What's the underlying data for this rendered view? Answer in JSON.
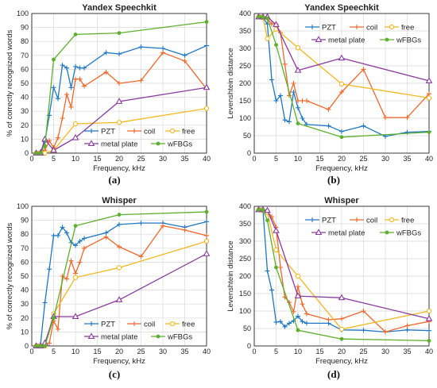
{
  "chart_data": [
    {
      "type": "line",
      "panel": "(a)",
      "title": "Yandex Speechkit",
      "xlabel": "Frequency, kHz",
      "ylabel": "% of correctly recognized words",
      "xlim": [
        0,
        40
      ],
      "ylim": [
        0,
        100
      ],
      "xticks": [
        0,
        5,
        10,
        15,
        20,
        25,
        30,
        35,
        40
      ],
      "yticks": [
        0,
        10,
        20,
        30,
        40,
        50,
        60,
        70,
        80,
        90,
        100
      ],
      "grid": true,
      "legend": "bottom",
      "series": [
        {
          "name": "PZT",
          "color": "#1f77c4",
          "marker": "plus",
          "x": [
            1,
            1.5,
            2,
            3,
            4,
            5,
            6,
            7,
            8,
            9,
            10,
            11,
            12,
            17,
            20,
            25,
            30,
            35,
            40
          ],
          "y": [
            0,
            0,
            1,
            8,
            27,
            47,
            39,
            63,
            61,
            47,
            62,
            61,
            61,
            72,
            71,
            76,
            75,
            70,
            77
          ]
        },
        {
          "name": "coil",
          "color": "#f0672a",
          "marker": "plus",
          "x": [
            1,
            1.5,
            2,
            3,
            4,
            5,
            6,
            7,
            8,
            9,
            10,
            11,
            12,
            17,
            20,
            25,
            30,
            35,
            40
          ],
          "y": [
            0,
            0,
            0,
            2,
            9,
            4,
            11,
            25,
            42,
            33,
            53,
            53,
            48,
            58,
            50,
            52,
            72,
            66,
            46
          ]
        },
        {
          "name": "free",
          "color": "#f4b81f",
          "marker": "circle",
          "x": [
            1,
            2,
            3,
            5,
            10,
            20,
            40
          ],
          "y": [
            0,
            0,
            0,
            2,
            21,
            22,
            32
          ]
        },
        {
          "name": "metal plate",
          "color": "#8a3a9e",
          "marker": "triangle",
          "x": [
            1,
            2,
            3,
            5,
            10,
            20,
            40
          ],
          "y": [
            0,
            0,
            10,
            2,
            11,
            37,
            47
          ]
        },
        {
          "name": "wFBGs",
          "color": "#5db02c",
          "marker": "dot",
          "x": [
            1,
            2,
            3,
            5,
            10,
            20,
            40
          ],
          "y": [
            0,
            0,
            5,
            67,
            85,
            86,
            94
          ]
        }
      ]
    },
    {
      "type": "line",
      "panel": "(b)",
      "title": "Yandex Speechkit",
      "xlabel": "Frequency, kHz",
      "ylabel": "Levenshtein distance",
      "xlim": [
        0,
        40
      ],
      "ylim": [
        0,
        400
      ],
      "xticks": [
        0,
        5,
        10,
        15,
        20,
        25,
        30,
        35,
        40
      ],
      "yticks": [
        0,
        50,
        100,
        150,
        200,
        250,
        300,
        350,
        400
      ],
      "grid": true,
      "legend": "top-right",
      "series": [
        {
          "name": "PZT",
          "color": "#1f77c4",
          "marker": "plus",
          "x": [
            1,
            1.5,
            2,
            3,
            4,
            5,
            6,
            7,
            8,
            9,
            10,
            11,
            12,
            17,
            20,
            25,
            30,
            35,
            40
          ],
          "y": [
            390,
            390,
            388,
            370,
            210,
            150,
            165,
            95,
            90,
            175,
            130,
            100,
            82,
            78,
            62,
            78,
            48,
            60,
            62
          ]
        },
        {
          "name": "coil",
          "color": "#f0672a",
          "marker": "plus",
          "x": [
            1,
            1.5,
            2,
            3,
            4,
            5,
            6,
            7,
            8,
            9,
            10,
            11,
            12,
            17,
            20,
            25,
            30,
            35,
            40
          ],
          "y": [
            390,
            390,
            390,
            385,
            370,
            370,
            345,
            255,
            165,
            200,
            150,
            150,
            150,
            125,
            175,
            240,
            102,
            102,
            170
          ]
        },
        {
          "name": "free",
          "color": "#f4b81f",
          "marker": "circle",
          "x": [
            1,
            2,
            3,
            5,
            10,
            20,
            40
          ],
          "y": [
            390,
            388,
            328,
            355,
            302,
            198,
            158
          ]
        },
        {
          "name": "metal plate",
          "color": "#8a3a9e",
          "marker": "triangle",
          "x": [
            1,
            2,
            3,
            5,
            10,
            20,
            40
          ],
          "y": [
            390,
            390,
            390,
            368,
            237,
            272,
            207
          ]
        },
        {
          "name": "wFBGs",
          "color": "#5db02c",
          "marker": "dot",
          "x": [
            1,
            2,
            3,
            5,
            10,
            20,
            40
          ],
          "y": [
            390,
            390,
            386,
            310,
            85,
            46,
            60
          ]
        }
      ]
    },
    {
      "type": "line",
      "panel": "(c)",
      "title": "Whisper",
      "xlabel": "Frequency, kHz",
      "ylabel": "% of correctly recognized words",
      "xlim": [
        0,
        40
      ],
      "ylim": [
        0,
        100
      ],
      "xticks": [
        0,
        5,
        10,
        15,
        20,
        25,
        30,
        35,
        40
      ],
      "yticks": [
        0,
        10,
        20,
        30,
        40,
        50,
        60,
        70,
        80,
        90,
        100
      ],
      "grid": true,
      "legend": "bottom",
      "series": [
        {
          "name": "PZT",
          "color": "#1f77c4",
          "marker": "plus",
          "x": [
            1,
            1.5,
            2,
            3,
            4,
            5,
            6,
            7,
            8,
            9,
            10,
            11,
            12,
            17,
            20,
            25,
            30,
            35,
            40
          ],
          "y": [
            0,
            0,
            1,
            31,
            55,
            79,
            79,
            85,
            81,
            74,
            72,
            75,
            77,
            81,
            87,
            88,
            88,
            85,
            89
          ]
        },
        {
          "name": "coil",
          "color": "#f0672a",
          "marker": "plus",
          "x": [
            1,
            1.5,
            2,
            3,
            4,
            5,
            6,
            7,
            8,
            9,
            10,
            11,
            12,
            17,
            20,
            25,
            30,
            35,
            40
          ],
          "y": [
            0,
            0,
            0,
            2,
            2,
            18,
            12,
            50,
            48,
            61,
            52,
            60,
            70,
            78,
            71,
            64,
            86,
            83,
            79
          ]
        },
        {
          "name": "free",
          "color": "#f4b81f",
          "marker": "circle",
          "x": [
            1,
            2,
            3,
            5,
            10,
            20,
            40
          ],
          "y": [
            0,
            0,
            0,
            23,
            49,
            56,
            75
          ]
        },
        {
          "name": "metal plate",
          "color": "#8a3a9e",
          "marker": "triangle",
          "x": [
            1,
            2,
            3,
            5,
            10,
            20,
            40
          ],
          "y": [
            0,
            0,
            2,
            21,
            21,
            33,
            66
          ]
        },
        {
          "name": "wFBGs",
          "color": "#5db02c",
          "marker": "dot",
          "x": [
            1,
            2,
            3,
            5,
            10,
            20,
            40
          ],
          "y": [
            0,
            0,
            0,
            20,
            86,
            94,
            96
          ]
        }
      ]
    },
    {
      "type": "line",
      "panel": "(d)",
      "title": "Whisper",
      "xlabel": "Frequency, kHz",
      "ylabel": "Levenshtein distance",
      "xlim": [
        0,
        40
      ],
      "ylim": [
        0,
        400
      ],
      "xticks": [
        0,
        5,
        10,
        15,
        20,
        25,
        30,
        35,
        40
      ],
      "yticks": [
        0,
        50,
        100,
        150,
        200,
        250,
        300,
        350,
        400
      ],
      "grid": true,
      "legend": "top-right",
      "series": [
        {
          "name": "PZT",
          "color": "#1f77c4",
          "marker": "plus",
          "x": [
            1,
            1.5,
            2,
            3,
            4,
            5,
            6,
            7,
            8,
            9,
            10,
            11,
            12,
            17,
            20,
            25,
            30,
            35,
            40
          ],
          "y": [
            390,
            390,
            387,
            215,
            160,
            68,
            70,
            55,
            65,
            72,
            85,
            70,
            65,
            65,
            46,
            45,
            40,
            46,
            44
          ]
        },
        {
          "name": "coil",
          "color": "#f0672a",
          "marker": "plus",
          "x": [
            1,
            1.5,
            2,
            3,
            4,
            5,
            6,
            7,
            8,
            9,
            10,
            11,
            12,
            17,
            20,
            25,
            30,
            35,
            40
          ],
          "y": [
            390,
            390,
            388,
            385,
            370,
            340,
            225,
            140,
            125,
            98,
            170,
            120,
            92,
            75,
            78,
            100,
            40,
            58,
            70
          ]
        },
        {
          "name": "free",
          "color": "#f4b81f",
          "marker": "circle",
          "x": [
            1,
            2,
            3,
            5,
            10,
            20,
            40
          ],
          "y": [
            390,
            388,
            382,
            275,
            200,
            48,
            100
          ]
        },
        {
          "name": "metal plate",
          "color": "#8a3a9e",
          "marker": "triangle",
          "x": [
            1,
            2,
            3,
            5,
            10,
            20,
            40
          ],
          "y": [
            390,
            390,
            388,
            330,
            143,
            138,
            78
          ]
        },
        {
          "name": "wFBGs",
          "color": "#5db02c",
          "marker": "dot",
          "x": [
            1,
            2,
            3,
            5,
            10,
            20,
            40
          ],
          "y": [
            390,
            390,
            360,
            225,
            45,
            20,
            15
          ]
        }
      ]
    }
  ]
}
